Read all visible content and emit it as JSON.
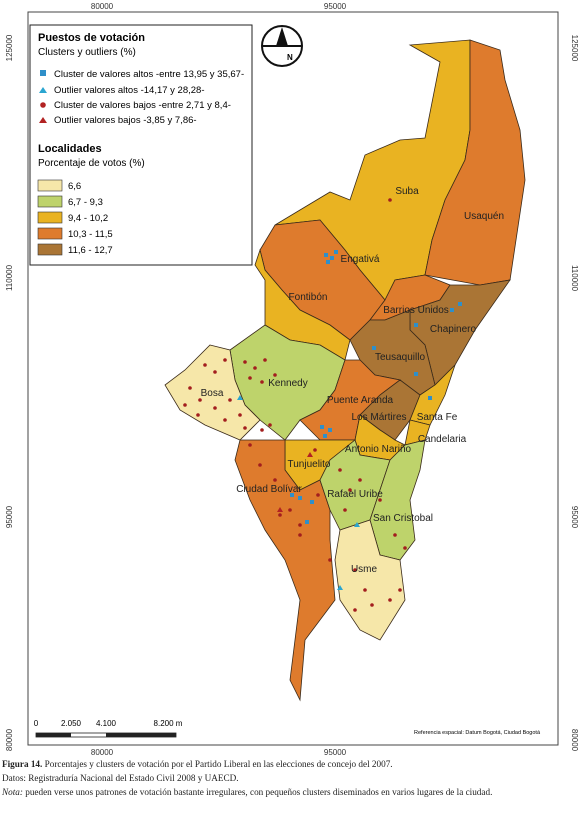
{
  "coordinate_labels": {
    "top": [
      "80000",
      "95000"
    ],
    "bottom": [
      "80000",
      "95000"
    ],
    "left": [
      "125000",
      "110000",
      "95000",
      "80000"
    ],
    "right": [
      "125000",
      "110000",
      "95000",
      "80000"
    ]
  },
  "legend": {
    "points_title": "Puestos de votación",
    "points_subtitle": "Clusters y outliers (%)",
    "points_items": [
      "Cluster de valores altos -entre 13,95 y 35,67-",
      "Outlier valores altos -14,17 y 28,28-",
      "Cluster de valores bajos -entre 2,71 y 8,4-",
      "Outlier valores bajos -3,85 y 7,86-"
    ],
    "areas_title": "Localidades",
    "areas_subtitle": "Porcentaje de votos (%)",
    "areas_items": [
      "6,6",
      "6,7 - 9,3",
      "9,4 - 10,2",
      "10,3 - 11,5",
      "11,6 - 12,7"
    ]
  },
  "north": "N",
  "localities": [
    "Suba",
    "Usaquén",
    "Engativá",
    "Fontibón",
    "Barrios Unidos",
    "Chapinero",
    "Teusaquillo",
    "Kennedy",
    "Bosa",
    "Puente Aranda",
    "Los Mártires",
    "Santa Fe",
    "Candelaria",
    "Antonio Nariño",
    "Tunjuelito",
    "Ciudad Bolívar",
    "Rafael Uribe",
    "San Cristobal",
    "Usme"
  ],
  "scale": [
    "0",
    "2.050",
    "4.100",
    "8.200 m"
  ],
  "reference": "Referencia espacial: Datum Bogotá, Ciudad Bogotá",
  "caption": {
    "figure_label": "Figura 14.",
    "figure_text": "Porcentajes y clusters de votación por el Partido Liberal en las elecciones de concejo del 2007.",
    "source": "Datos: Registraduría Nacional del Estado Civil 2008 y UAECD.",
    "note_label": "Nota:",
    "note_text": "pueden verse unos patrones de votación bastante irregulares, con pequeños clusters diseminados en varios lugares de la ciudad."
  }
}
